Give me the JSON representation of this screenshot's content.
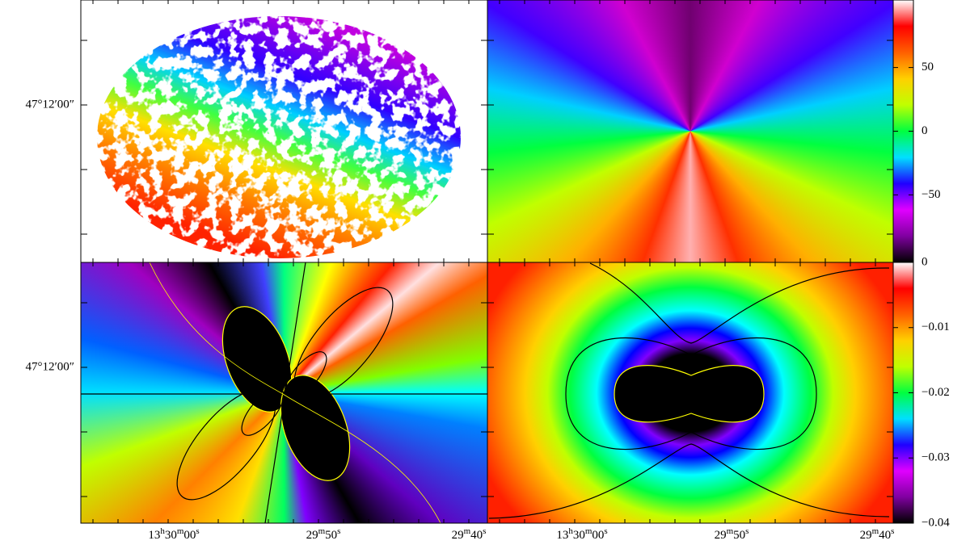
{
  "dec_labels": [
    "47°12′00″",
    "47°12′00″"
  ],
  "ra_labels": [
    [
      [
        "13",
        "h",
        "30",
        "m",
        "00",
        "s"
      ],
      [
        "29",
        "m",
        "50",
        "s"
      ],
      [
        "29",
        "m",
        "40",
        "s"
      ]
    ],
    [
      [
        "13",
        "h",
        "30",
        "m",
        "00",
        "s"
      ],
      [
        "29",
        "m",
        "50",
        "s"
      ],
      [
        "29",
        "m",
        "40",
        "s"
      ]
    ]
  ],
  "colormap": [
    "#000000",
    "#8000a0",
    "#e000ff",
    "#2000ff",
    "#00e0ff",
    "#00ff40",
    "#c0ff00",
    "#ffd000",
    "#ff6000",
    "#ff0000",
    "#ffffff"
  ],
  "colorbars": [
    {
      "lim": [
        -103,
        103
      ],
      "ticks": [
        50,
        0,
        {
          "value": -50,
          "label": "−50"
        }
      ]
    },
    {
      "lim": [
        -0.04,
        0
      ],
      "ticks": [
        0,
        {
          "value": -0.01,
          "label": "−0.01"
        },
        {
          "value": -0.02,
          "label": "−0.02"
        },
        {
          "value": -0.03,
          "label": "−0.03"
        },
        {
          "value": -0.04,
          "label": "−0.04"
        }
      ]
    }
  ]
}
